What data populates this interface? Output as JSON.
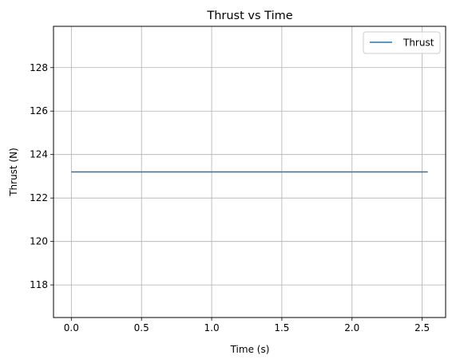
{
  "chart_data": {
    "type": "line",
    "title": "Thrust vs Time",
    "xlabel": "Time (s)",
    "ylabel": "Thrust (N)",
    "xlim": [
      -0.127,
      2.667
    ],
    "ylim": [
      116.5,
      129.9
    ],
    "xticks": [
      0.0,
      0.5,
      1.0,
      1.5,
      2.0,
      2.5
    ],
    "xtick_labels": [
      "0.0",
      "0.5",
      "1.0",
      "1.5",
      "2.0",
      "2.5"
    ],
    "yticks": [
      118,
      120,
      122,
      124,
      126,
      128
    ],
    "ytick_labels": [
      "118",
      "120",
      "122",
      "124",
      "126",
      "128"
    ],
    "grid": true,
    "legend_position": "top-right",
    "series": [
      {
        "name": "Thrust",
        "color": "#1f77b4",
        "x": [
          0.0,
          2.54
        ],
        "y": [
          123.2,
          123.2
        ]
      }
    ]
  }
}
